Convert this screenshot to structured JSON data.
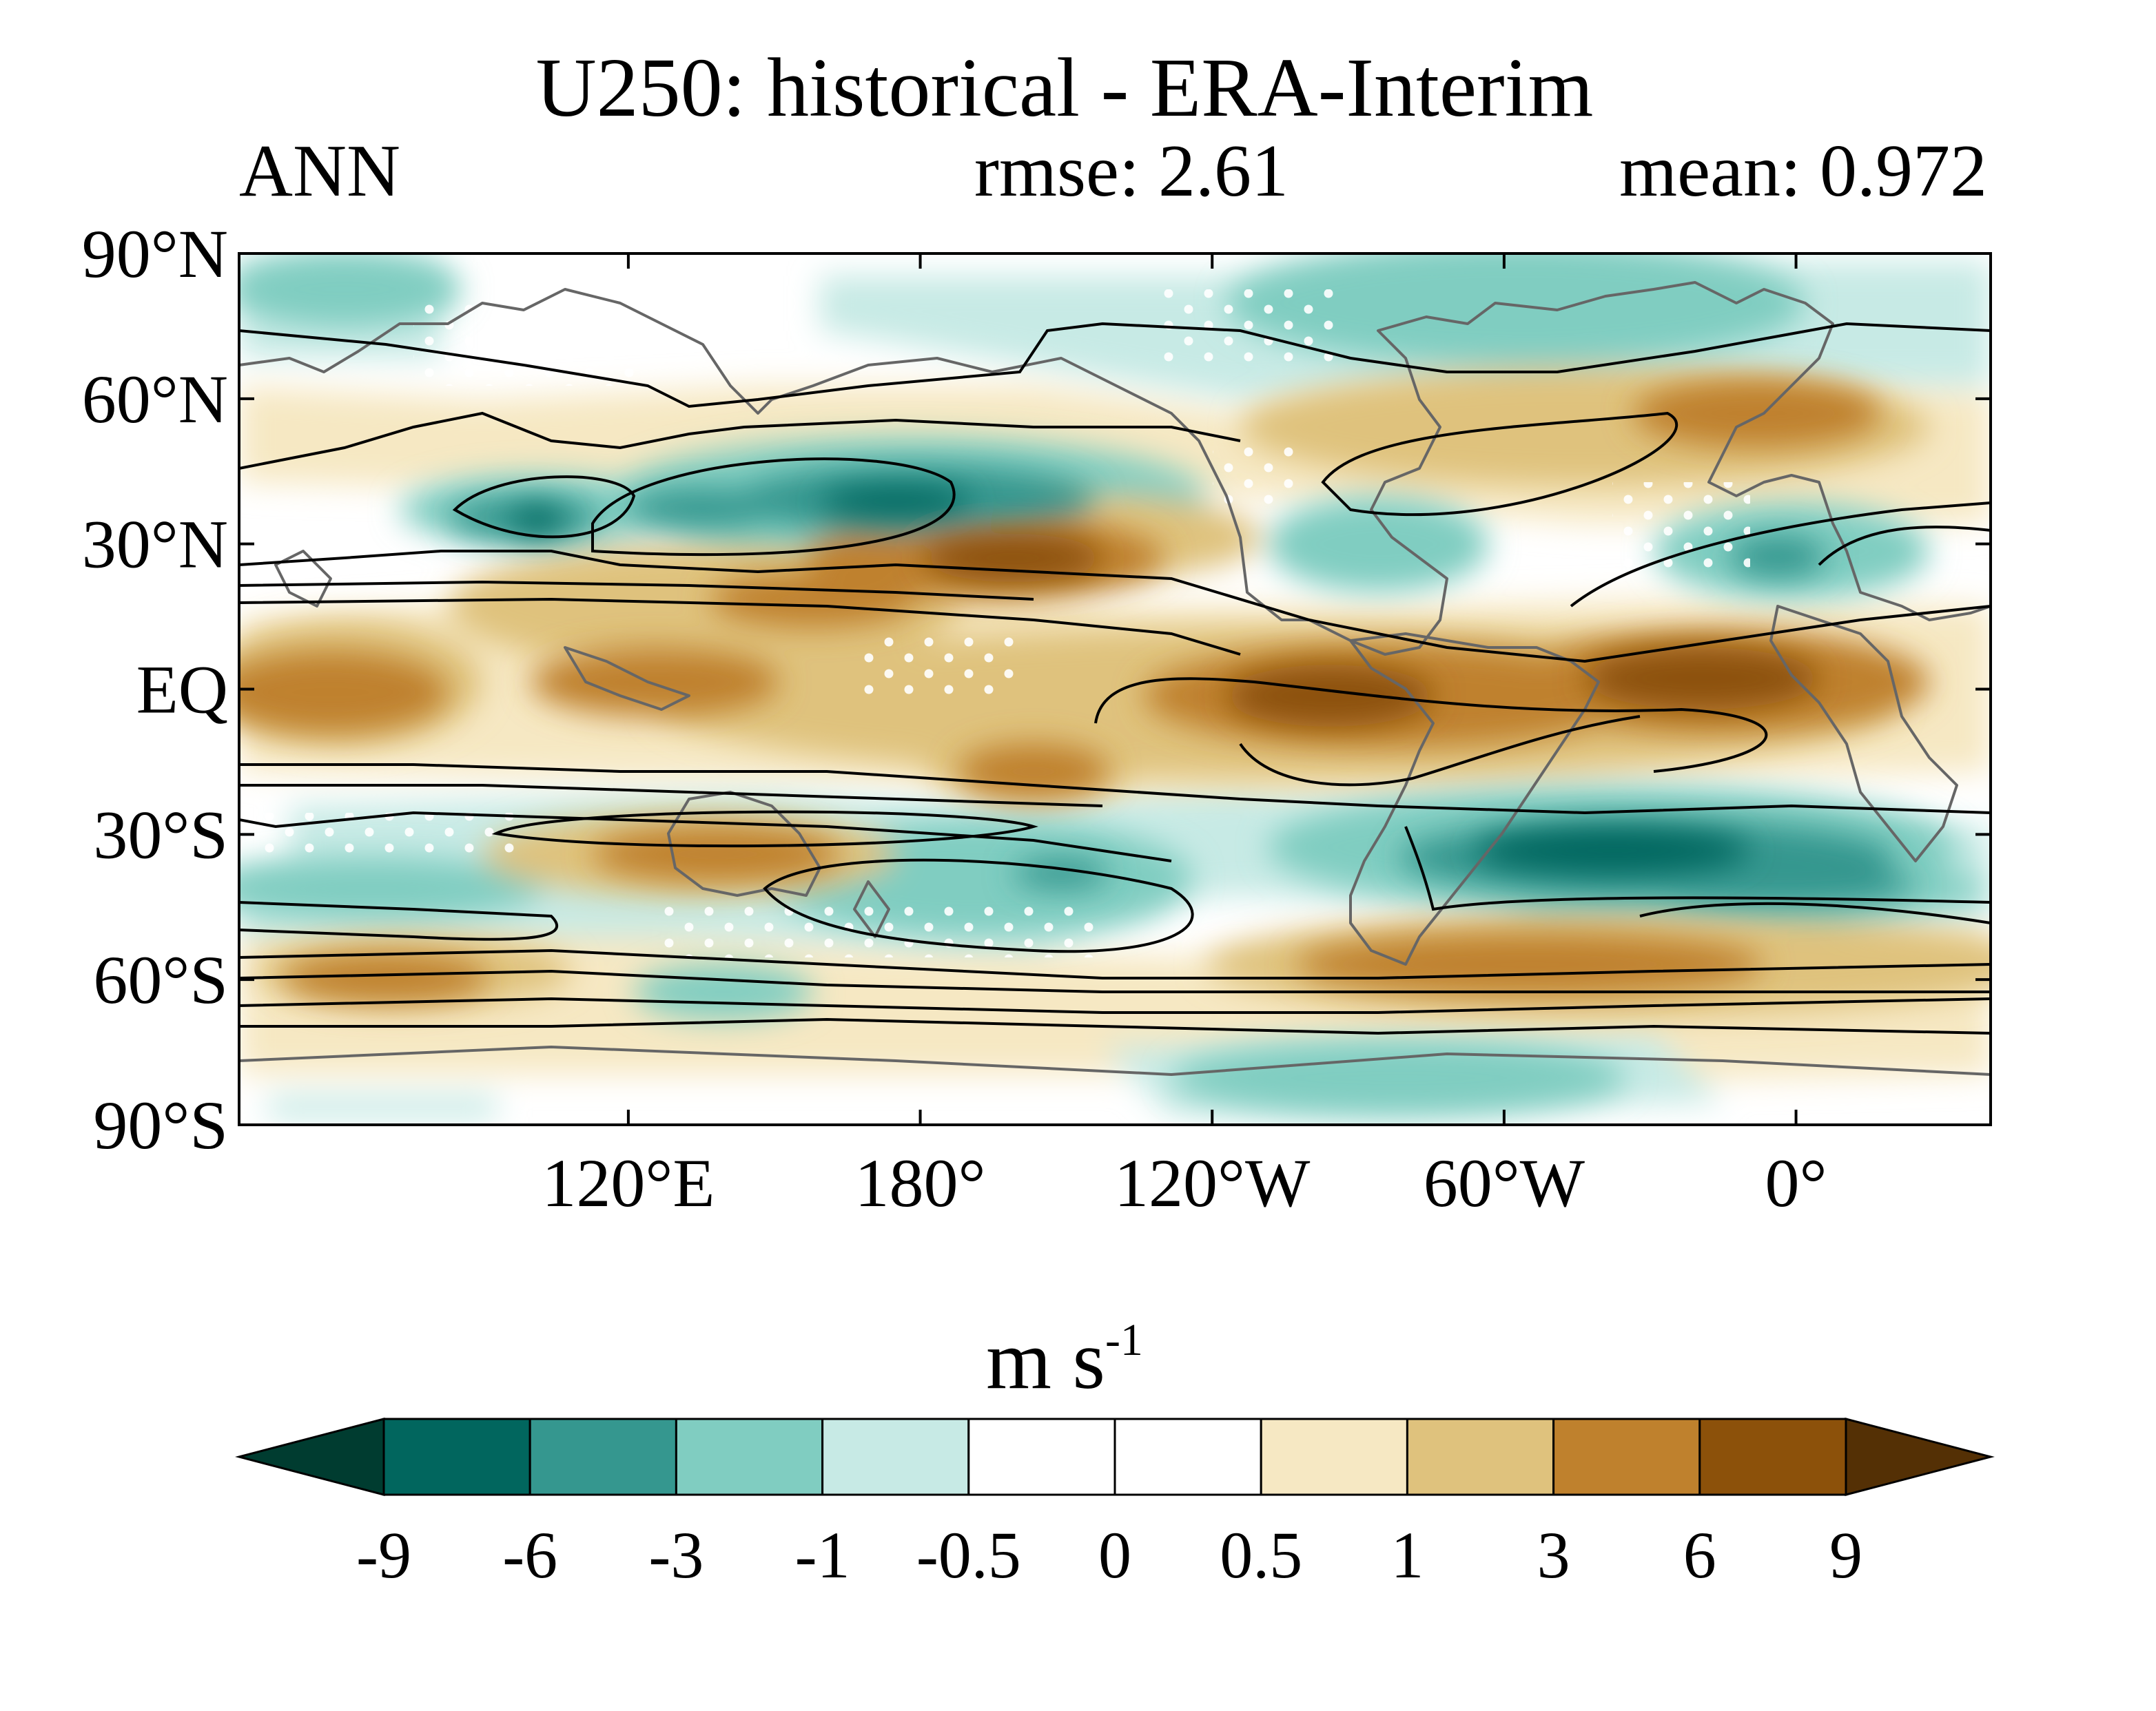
{
  "title": "U250: historical - ERA-Interim",
  "season": "ANN",
  "rmse_text": "rmse: 2.61",
  "mean_text": "mean: 0.972",
  "y_ticks": [
    {
      "lat": 90,
      "label": "90°N"
    },
    {
      "lat": 60,
      "label": "60°N"
    },
    {
      "lat": 30,
      "label": "30°N"
    },
    {
      "lat": 0,
      "label": "EQ"
    },
    {
      "lat": -30,
      "label": "30°S"
    },
    {
      "lat": -60,
      "label": "60°S"
    },
    {
      "lat": -90,
      "label": "90°S"
    }
  ],
  "x_ticks": [
    {
      "lon": 120,
      "label": "120°E"
    },
    {
      "lon": 180,
      "label": "180°"
    },
    {
      "lon": 240,
      "label": "120°W"
    },
    {
      "lon": 300,
      "label": "60°W"
    },
    {
      "lon": 360,
      "label": "0°"
    }
  ],
  "map_range": {
    "lon": [
      40,
      400
    ],
    "lat": [
      -90,
      90
    ]
  },
  "colorbar": {
    "unit_main": "m s",
    "unit_exp": "-1",
    "levels": [
      "-9",
      "-6",
      "-3",
      "-1",
      "-0.5",
      "0",
      "0.5",
      "1",
      "3",
      "6",
      "9"
    ],
    "colors": [
      "#003c30",
      "#01665e",
      "#35978f",
      "#80cdc1",
      "#c7eae5",
      "#ffffff",
      "#ffffff",
      "#f6e8c3",
      "#dfc27d",
      "#bf812d",
      "#8c510a",
      "#543005"
    ]
  },
  "chart_data": {
    "type": "heatmap",
    "title": "U250: historical - ERA-Interim",
    "variable": "U250",
    "season": "ANN",
    "rmse": 2.61,
    "mean": 0.972,
    "units": "m s-1",
    "lon_range": [
      40,
      400
    ],
    "lat_range": [
      -90,
      90
    ],
    "anomaly_features": [
      {
        "lon": 50,
        "lat": 77,
        "value": -2
      },
      {
        "lon": 100,
        "lat": 38,
        "value": -3
      },
      {
        "lon": 140,
        "lat": 44,
        "value": -3
      },
      {
        "lon": 170,
        "lat": 40,
        "value": -4
      },
      {
        "lon": 200,
        "lat": 28,
        "value": 6
      },
      {
        "lon": 160,
        "lat": 12,
        "value": 2
      },
      {
        "lon": 60,
        "lat": 2,
        "value": 3
      },
      {
        "lon": 130,
        "lat": -2,
        "value": 2
      },
      {
        "lon": 300,
        "lat": 0,
        "value": 6
      },
      {
        "lon": 345,
        "lat": 2,
        "value": 6
      },
      {
        "lon": 310,
        "lat": 55,
        "value": 2
      },
      {
        "lon": 350,
        "lat": 58,
        "value": 3
      },
      {
        "lon": 290,
        "lat": 75,
        "value": -3
      },
      {
        "lon": 245,
        "lat": 35,
        "value": -2
      },
      {
        "lon": 355,
        "lat": 30,
        "value": -3
      },
      {
        "lon": 120,
        "lat": -33,
        "value": 3
      },
      {
        "lon": 205,
        "lat": -37,
        "value": -3
      },
      {
        "lon": 330,
        "lat": -33,
        "value": -7
      },
      {
        "lon": 80,
        "lat": -40,
        "value": -1
      },
      {
        "lon": 310,
        "lat": -58,
        "value": 3
      },
      {
        "lon": 70,
        "lat": -60,
        "value": 3
      },
      {
        "lon": 130,
        "lat": -65,
        "value": -2
      },
      {
        "lon": 270,
        "lat": -80,
        "value": -2
      }
    ],
    "colorbar_levels": [
      -9,
      -6,
      -3,
      -1,
      -0.5,
      0,
      0.5,
      1,
      3,
      6,
      9
    ]
  }
}
